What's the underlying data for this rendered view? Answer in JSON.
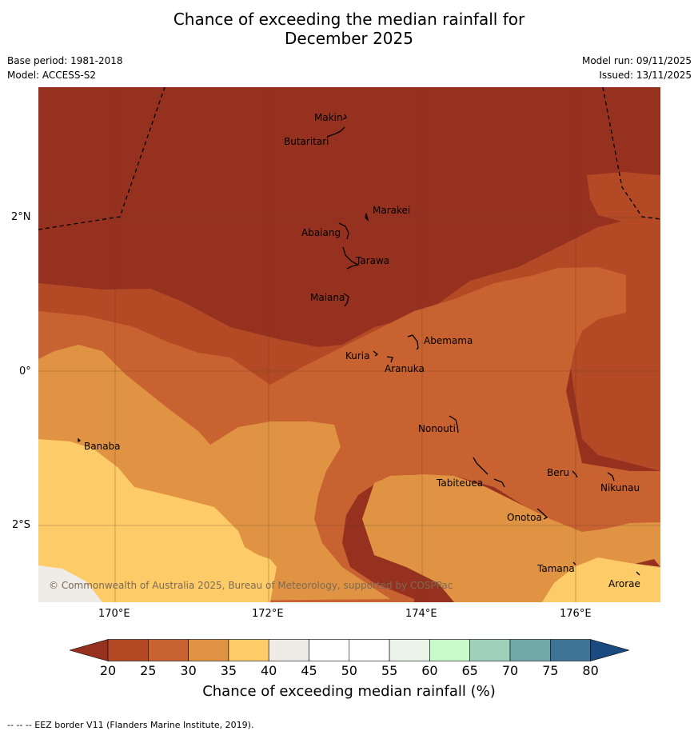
{
  "title_line1": "Chance of exceeding the median rainfall for",
  "title_line2": "December 2025",
  "meta": {
    "base_period": "Base period: 1981-2018",
    "model": "Model: ACCESS-S2",
    "model_run": "Model run: 09/11/2025",
    "issued": "Issued: 13/11/2025"
  },
  "axes": {
    "lat_labels": [
      "2°N",
      "0°",
      "2°S"
    ],
    "lon_labels": [
      "170°E",
      "172°E",
      "174°E",
      "176°E"
    ]
  },
  "places": {
    "makin": "Makin",
    "butaritari": "Butaritari",
    "marakei": "Marakei",
    "abaiang": "Abaiang",
    "tarawa": "Tarawa",
    "maiana": "Maiana",
    "abemama": "Abemama",
    "kuria": "Kuria",
    "aranuka": "Aranuka",
    "nonouti": "Nonouti",
    "banaba": "Banaba",
    "beru": "Beru",
    "nikunau": "Nikunau",
    "tabiteuea": "Tabiteuea",
    "onotoa": "Onotoa",
    "tamana": "Tamana",
    "arorae": "Arorae"
  },
  "copyright": "© Commonwealth of Australia 2025, Bureau of Meteorology, supported by COSPPac",
  "colorbar": {
    "ticks": [
      "20",
      "25",
      "30",
      "35",
      "40",
      "45",
      "50",
      "55",
      "60",
      "65",
      "70",
      "75",
      "80"
    ],
    "colors": [
      "#96311f",
      "#b44a25",
      "#c96231",
      "#e09443",
      "#fecb69",
      "#efebe7",
      "#ffffff",
      "#ffffff",
      "#eaf4e8",
      "#c8facc",
      "#9fd0b9",
      "#70a9a8",
      "#3f7496",
      "#1a4a80"
    ],
    "title": "Chance of exceeding median rainfall (%)"
  },
  "footnote": "--  --  -- EEZ border V11 (Flanders Marine Institute, 2019)."
}
